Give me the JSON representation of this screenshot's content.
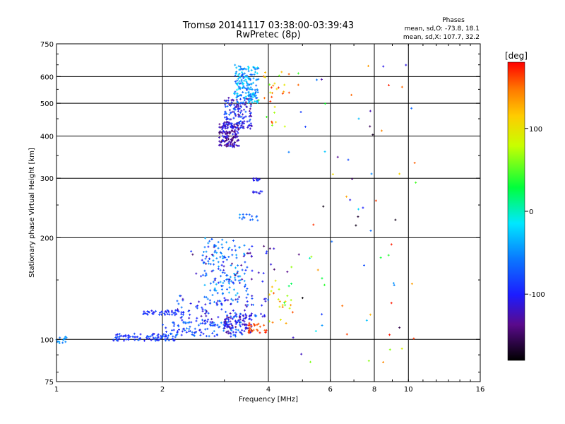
{
  "chart_data": {
    "type": "scatter",
    "title": "Tromsø 20141117 03:38:00-03:39:43",
    "subtitle": "RwPretec (8p)",
    "xlabel": "Frequency [MHz]",
    "ylabel": "Stationary phase Virtual Height [km]",
    "xscale": "log",
    "yscale": "log",
    "xlim": [
      1,
      16
    ],
    "ylim": [
      75,
      750
    ],
    "x_ticks": [
      {
        "value": 1,
        "label": "1"
      },
      {
        "value": 2,
        "label": "2"
      },
      {
        "value": 4,
        "label": "4"
      },
      {
        "value": 6,
        "label": "6"
      },
      {
        "value": 8,
        "label": "8"
      },
      {
        "value": 10,
        "label": "10"
      },
      {
        "value": 16,
        "label": "16"
      }
    ],
    "x_grid": [
      2,
      4,
      6,
      8,
      10
    ],
    "y_ticks": [
      {
        "value": 75,
        "label": "75"
      },
      {
        "value": 100,
        "label": "100"
      },
      {
        "value": 200,
        "label": "200"
      },
      {
        "value": 300,
        "label": "300"
      },
      {
        "value": 400,
        "label": "400"
      },
      {
        "value": 500,
        "label": "500"
      },
      {
        "value": 600,
        "label": "600"
      },
      {
        "value": 750,
        "label": "750"
      }
    ],
    "y_grid": [
      100,
      200,
      300,
      400,
      500,
      600
    ],
    "grid": true,
    "phases_box": {
      "title": "Phases",
      "line_o": "mean, sd,O: -73.8, 18.1",
      "line_x": "mean, sd,X: 107.7, 32.2"
    },
    "colorbar": {
      "label": "[deg]",
      "range": [
        -180,
        180
      ],
      "ticks": [
        {
          "value": 100,
          "label": "100"
        },
        {
          "value": 0,
          "label": "0"
        },
        {
          "value": -100,
          "label": "-100"
        }
      ]
    },
    "clusters": [
      {
        "x": [
          1.0,
          1.08
        ],
        "y": [
          97,
          102
        ],
        "count": 14,
        "phase": [
          -60,
          -40
        ]
      },
      {
        "x": [
          1.45,
          2.2
        ],
        "y": [
          99,
          104
        ],
        "count": 90,
        "phase": [
          -110,
          -60
        ]
      },
      {
        "x": [
          2.0,
          3.4
        ],
        "y": [
          102,
          113
        ],
        "count": 110,
        "phase": [
          -110,
          -50
        ]
      },
      {
        "x": [
          3.0,
          3.6
        ],
        "y": [
          104,
          118
        ],
        "count": 80,
        "phase": [
          -140,
          -95
        ]
      },
      {
        "x": [
          3.5,
          3.95
        ],
        "y": [
          104,
          112
        ],
        "count": 30,
        "phase": [
          150,
          178
        ]
      },
      {
        "x": [
          1.75,
          2.3
        ],
        "y": [
          118,
          122
        ],
        "count": 45,
        "phase": [
          -110,
          -70
        ]
      },
      {
        "x": [
          2.2,
          4.0
        ],
        "y": [
          112,
          135
        ],
        "count": 120,
        "phase": [
          -130,
          -50
        ]
      },
      {
        "x": [
          2.6,
          3.5
        ],
        "y": [
          135,
          200
        ],
        "count": 130,
        "phase": [
          -80,
          -30
        ]
      },
      {
        "x": [
          2.4,
          4.2
        ],
        "y": [
          145,
          190
        ],
        "count": 50,
        "phase": [
          -150,
          -90
        ]
      },
      {
        "x": [
          3.3,
          3.8
        ],
        "y": [
          225,
          235
        ],
        "count": 14,
        "phase": [
          -80,
          -40
        ]
      },
      {
        "x": [
          3.6,
          3.85
        ],
        "y": [
          295,
          300
        ],
        "count": 10,
        "phase": [
          -120,
          -80
        ]
      },
      {
        "x": [
          3.6,
          3.85
        ],
        "y": [
          270,
          275
        ],
        "count": 8,
        "phase": [
          -120,
          -80
        ]
      },
      {
        "x": [
          2.9,
          3.3
        ],
        "y": [
          370,
          440
        ],
        "count": 140,
        "phase": [
          -150,
          -100
        ]
      },
      {
        "x": [
          3.0,
          3.6
        ],
        "y": [
          420,
          520
        ],
        "count": 150,
        "phase": [
          -140,
          -60
        ]
      },
      {
        "x": [
          3.2,
          3.75
        ],
        "y": [
          500,
          650
        ],
        "count": 170,
        "phase": [
          -80,
          -10
        ]
      },
      {
        "x": [
          3.75,
          4.6
        ],
        "y": [
          420,
          620
        ],
        "count": 30,
        "phase": [
          30,
          170
        ]
      },
      {
        "x": [
          4.0,
          4.7
        ],
        "y": [
          110,
          150
        ],
        "count": 25,
        "phase": [
          20,
          160
        ]
      },
      {
        "x": [
          4.5,
          10.5
        ],
        "y": [
          80,
          650
        ],
        "count": 75,
        "phase": [
          -180,
          180
        ]
      }
    ]
  }
}
